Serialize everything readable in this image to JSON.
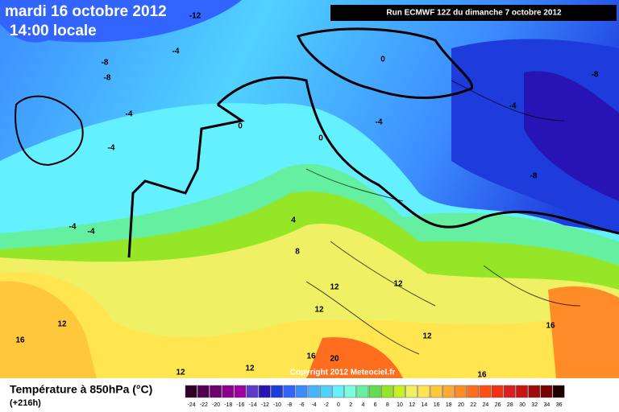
{
  "header": {
    "title": "mardi 16 octobre 2012",
    "time": "14:00 locale",
    "run": "Run ECMWF 12Z du dimanche 7 octobre 2012",
    "copyright": "Copyright 2012 Meteociel.fr"
  },
  "legend": {
    "title": "Température à 850hPa (°C)",
    "lead": "(+216h)",
    "levels": [
      -24,
      -22,
      -20,
      -18,
      -16,
      -14,
      -12,
      -10,
      -8,
      -6,
      -4,
      -2,
      0,
      2,
      4,
      6,
      8,
      10,
      12,
      14,
      16,
      18,
      20,
      22,
      24,
      26,
      28,
      30,
      32,
      34,
      36
    ],
    "colors": [
      "#2d0028",
      "#500050",
      "#6e006e",
      "#8c008c",
      "#a000a0",
      "#5a3cc8",
      "#2814b4",
      "#1e3cdc",
      "#3264ff",
      "#3c8cff",
      "#46b4ff",
      "#50d2ff",
      "#64f0ff",
      "#78ffdc",
      "#64f0a0",
      "#64dc50",
      "#96e628",
      "#c8f028",
      "#f0f064",
      "#ffe650",
      "#ffc83c",
      "#ffaa32",
      "#ff8c28",
      "#ff6e1e",
      "#ff5014",
      "#f03214",
      "#dc1e1e",
      "#c81414",
      "#a00a0a",
      "#780000",
      "#1e0000"
    ]
  },
  "contour_labels": [
    -12,
    -4,
    -8,
    -8,
    -4,
    -4,
    -4,
    -4,
    0,
    0,
    -4,
    0,
    -4,
    -8,
    4,
    8,
    12,
    12,
    12,
    12,
    16,
    12,
    16,
    16,
    20,
    12,
    12,
    16,
    -8
  ]
}
